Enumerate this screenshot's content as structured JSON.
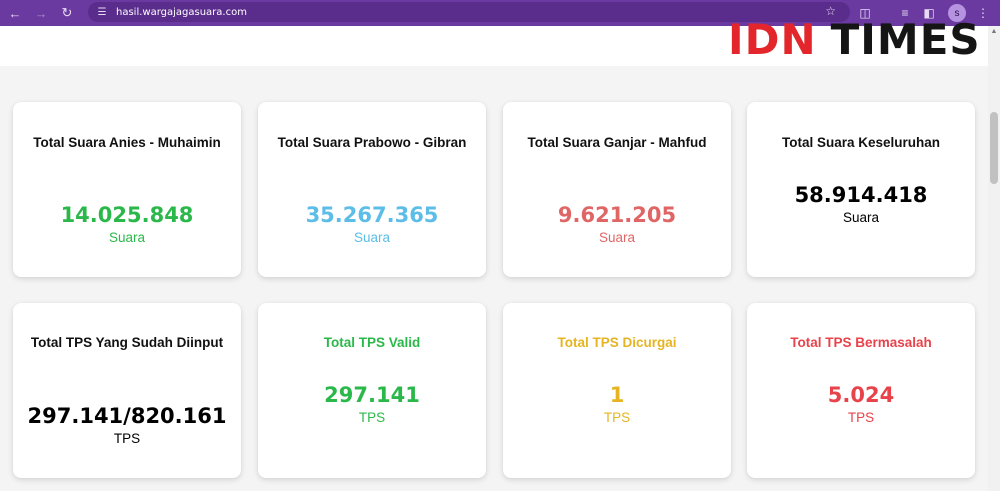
{
  "browser": {
    "url": "hasil.wargajagasuara.com",
    "avatar_letter": "s",
    "accent": "#6b3aa0"
  },
  "logo": {
    "part1": "IDN",
    "part2": "TIMES"
  },
  "colors": {
    "green": "#2bb84a",
    "blue": "#5cbde8",
    "red": "#e06666",
    "black": "#000000",
    "yellow": "#e6b422",
    "crimson": "#e8434a"
  },
  "cards_row1": [
    {
      "title": "Total Suara Anies - Muhaimin",
      "value": "14.025.848",
      "unit": "Suara",
      "color": "green"
    },
    {
      "title": "Total Suara Prabowo - Gibran",
      "value": "35.267.365",
      "unit": "Suara",
      "color": "blue"
    },
    {
      "title": "Total Suara Ganjar - Mahfud",
      "value": "9.621.205",
      "unit": "Suara",
      "color": "red"
    },
    {
      "title": "Total Suara Keseluruhan",
      "value": "58.914.418",
      "unit": "Suara",
      "color": "black"
    }
  ],
  "cards_row2": [
    {
      "title": "Total TPS Yang Sudah Diinput",
      "value": "297.141/820.161",
      "unit": "TPS",
      "color": "black"
    },
    {
      "title": "Total TPS Valid",
      "value": "297.141",
      "unit": "TPS",
      "color": "green"
    },
    {
      "title": "Total TPS Dicurgai",
      "value": "1",
      "unit": "TPS",
      "color": "yellow"
    },
    {
      "title": "Total TPS Bermasalah",
      "value": "5.024",
      "unit": "TPS",
      "color": "crimson"
    }
  ]
}
